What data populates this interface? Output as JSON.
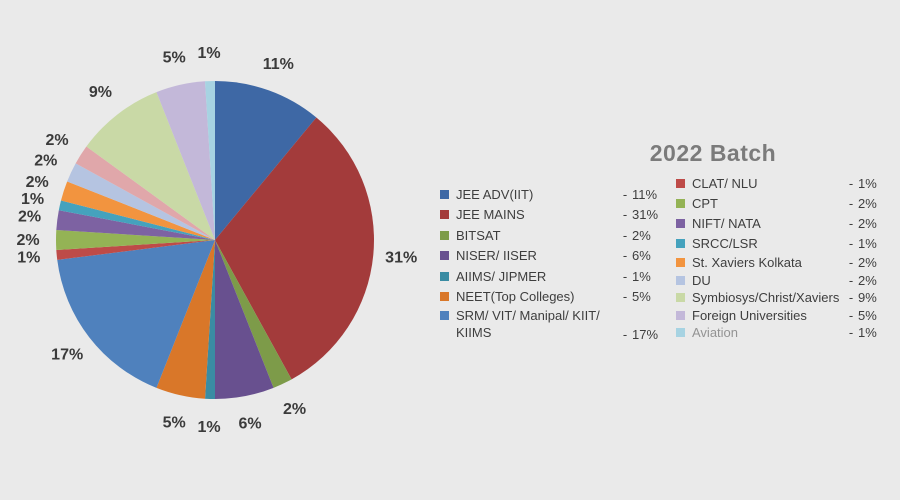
{
  "title": "2022 Batch",
  "background_color": "#EAEAEA",
  "title_color": "#7B7B7B",
  "text_color": "#3E3E3E",
  "chart_data": {
    "type": "pie",
    "title": "2022 Batch",
    "unit": "%",
    "start_angle_deg": 0,
    "direction": "clockwise",
    "labels_position": "outside",
    "legend_position": "right-two-columns",
    "slices": [
      {
        "label": "JEE ADV(IIT)",
        "value": 11,
        "color": "#3E68A5"
      },
      {
        "label": "JEE MAINS",
        "value": 31,
        "color": "#A33B3B"
      },
      {
        "label": "BITSAT",
        "value": 2,
        "color": "#7D9B49"
      },
      {
        "label": "NISER/ IISER",
        "value": 6,
        "color": "#68508F"
      },
      {
        "label": "AIIMS/ JIPMER",
        "value": 1,
        "color": "#3A8CA3"
      },
      {
        "label": "NEET(Top Colleges)",
        "value": 5,
        "color": "#D97729"
      },
      {
        "label": "SRM/ VIT/ Manipal/ KIIT/ KIIMS",
        "value": 17,
        "color": "#4F81BD"
      },
      {
        "label": "CLAT/ NLU",
        "value": 1,
        "color": "#BE4B48"
      },
      {
        "label": "CPT",
        "value": 2,
        "color": "#94B355"
      },
      {
        "label": "NIFT/ NATA",
        "value": 2,
        "color": "#7D62A2"
      },
      {
        "label": "SRCC/LSR",
        "value": 1,
        "color": "#45A2BD"
      },
      {
        "label": "St. Xaviers Kolkata",
        "value": 2,
        "color": "#F2943F"
      },
      {
        "label": "DU",
        "value": 2,
        "color": "#B5C4E1"
      },
      {
        "label": "",
        "value": 2,
        "color": "#E0A7AA"
      },
      {
        "label": "Symbiosys/Christ/Xaviers",
        "value": 9,
        "color": "#C9D9A6"
      },
      {
        "label": "Foreign Universities",
        "value": 5,
        "color": "#C3B8D9"
      },
      {
        "label": "Aviation",
        "value": 1,
        "color": "#A7D3E2"
      }
    ]
  },
  "legend": {
    "separator": "-",
    "left": [
      {
        "label": "JEE ADV(IIT)",
        "value": "11%"
      },
      {
        "label": "JEE MAINS",
        "value": "31%"
      },
      {
        "label": "BITSAT",
        "value": "2%"
      },
      {
        "label": "NISER/ IISER",
        "value": "6%"
      },
      {
        "label": "AIIMS/ JIPMER",
        "value": "1%"
      },
      {
        "label": "NEET(Top Colleges)",
        "value": "5%"
      },
      {
        "line1": "SRM/ VIT/ Manipal/ KIIT/",
        "line2": "KIIMS",
        "value": "17%"
      }
    ],
    "right": [
      {
        "label": "CLAT/ NLU",
        "value": "1%"
      },
      {
        "label": "CPT",
        "value": "2%"
      },
      {
        "label": "NIFT/ NATA",
        "value": "2%"
      },
      {
        "label": "SRCC/LSR",
        "value": "1%"
      },
      {
        "label": "St. Xaviers Kolkata",
        "value": "2%"
      },
      {
        "label": "DU",
        "value": "2%"
      },
      {
        "label": "Symbiosys/Christ/Xaviers",
        "value": "9%"
      },
      {
        "label": "Foreign Universities",
        "value": "5%"
      },
      {
        "label": "Aviation",
        "value": "1%"
      }
    ]
  }
}
